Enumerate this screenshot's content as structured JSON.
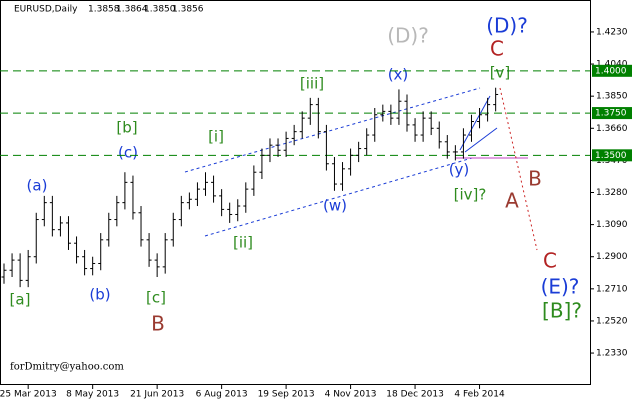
{
  "chart_data": {
    "type": "ohlc",
    "title": "EURUSD,Daily",
    "header_values": [
      1.3858,
      1.3864,
      1.385,
      1.3856
    ],
    "header_labels": [
      "1.3858",
      "1.3864",
      "1.3850",
      "1.3856"
    ],
    "color": "#000000",
    "categories": [
      null,
      null,
      null,
      "25 Mar 2013",
      null,
      null,
      null,
      null,
      null,
      null,
      null,
      "8 May 2013",
      null,
      null,
      null,
      null,
      null,
      null,
      null,
      "21 Jun 2013",
      null,
      null,
      null,
      null,
      null,
      null,
      null,
      "6 Aug 2013",
      null,
      null,
      null,
      null,
      null,
      null,
      null,
      "19 Sep 2013",
      null,
      null,
      null,
      null,
      null,
      null,
      null,
      "4 Nov 2013",
      null,
      null,
      null,
      null,
      null,
      null,
      null,
      "18 Dec 2013",
      null,
      null,
      null,
      null,
      null,
      null,
      null,
      "4 Feb 2014",
      null,
      null
    ],
    "open": [
      1.278,
      1.282,
      1.288,
      1.276,
      1.29,
      1.312,
      1.322,
      1.306,
      1.31,
      1.298,
      1.29,
      1.283,
      1.286,
      1.3,
      1.312,
      1.322,
      1.334,
      1.316,
      1.3,
      1.288,
      1.284,
      1.3,
      1.312,
      1.322,
      1.324,
      1.33,
      1.334,
      1.326,
      1.318,
      1.315,
      1.32,
      1.33,
      1.34,
      1.35,
      1.356,
      1.353,
      1.36,
      1.364,
      1.372,
      1.38,
      1.364,
      1.345,
      1.333,
      1.342,
      1.35,
      1.354,
      1.362,
      1.374,
      1.376,
      1.372,
      1.382,
      1.368,
      1.362,
      1.372,
      1.366,
      1.358,
      1.352,
      1.352,
      1.362,
      1.37,
      1.374,
      1.38
    ],
    "high": [
      1.286,
      1.292,
      1.292,
      1.294,
      1.316,
      1.326,
      1.326,
      1.314,
      1.314,
      1.302,
      1.294,
      1.29,
      1.304,
      1.316,
      1.326,
      1.34,
      1.338,
      1.32,
      1.304,
      1.292,
      1.304,
      1.316,
      1.326,
      1.328,
      1.334,
      1.34,
      1.338,
      1.33,
      1.322,
      1.324,
      1.334,
      1.344,
      1.354,
      1.36,
      1.36,
      1.364,
      1.368,
      1.376,
      1.384,
      1.384,
      1.368,
      1.349,
      1.346,
      1.354,
      1.358,
      1.366,
      1.378,
      1.38,
      1.38,
      1.389,
      1.386,
      1.372,
      1.376,
      1.376,
      1.37,
      1.362,
      1.356,
      1.366,
      1.374,
      1.378,
      1.384,
      1.39
    ],
    "low": [
      1.274,
      1.278,
      1.272,
      1.272,
      1.286,
      1.308,
      1.302,
      1.302,
      1.294,
      1.286,
      1.279,
      1.279,
      1.282,
      1.296,
      1.308,
      1.318,
      1.312,
      1.296,
      1.284,
      1.278,
      1.28,
      1.296,
      1.308,
      1.318,
      1.32,
      1.326,
      1.322,
      1.314,
      1.31,
      1.311,
      1.316,
      1.326,
      1.336,
      1.346,
      1.349,
      1.349,
      1.356,
      1.36,
      1.368,
      1.36,
      1.341,
      1.329,
      1.329,
      1.338,
      1.346,
      1.35,
      1.358,
      1.37,
      1.368,
      1.368,
      1.364,
      1.358,
      1.358,
      1.362,
      1.354,
      1.348,
      1.347,
      1.348,
      1.358,
      1.366,
      1.37,
      1.376
    ],
    "close": [
      1.282,
      1.288,
      1.276,
      1.29,
      1.312,
      1.322,
      1.306,
      1.31,
      1.298,
      1.29,
      1.283,
      1.286,
      1.3,
      1.312,
      1.322,
      1.334,
      1.316,
      1.3,
      1.288,
      1.284,
      1.3,
      1.312,
      1.322,
      1.324,
      1.33,
      1.334,
      1.326,
      1.318,
      1.315,
      1.32,
      1.33,
      1.34,
      1.35,
      1.356,
      1.353,
      1.36,
      1.364,
      1.372,
      1.38,
      1.364,
      1.345,
      1.333,
      1.342,
      1.35,
      1.354,
      1.362,
      1.374,
      1.376,
      1.372,
      1.382,
      1.368,
      1.362,
      1.372,
      1.366,
      1.358,
      1.352,
      1.352,
      1.362,
      1.37,
      1.374,
      1.38,
      1.386
    ],
    "ylim": [
      1.2141,
      1.4419
    ],
    "yticks": [
      {
        "value": 1.423,
        "label": "1.4230"
      },
      {
        "value": 1.404,
        "label": "1.4040"
      },
      {
        "value": 1.385,
        "label": "1.3850"
      },
      {
        "value": 1.366,
        "label": "1.3660"
      },
      {
        "value": 1.347,
        "label": "1.3470"
      },
      {
        "value": 1.328,
        "label": "1.3280"
      },
      {
        "value": 1.309,
        "label": "1.3090"
      },
      {
        "value": 1.29,
        "label": "1.2900"
      },
      {
        "value": 1.271,
        "label": "1.2710"
      },
      {
        "value": 1.252,
        "label": "1.2520"
      },
      {
        "value": 1.233,
        "label": "1.2330"
      }
    ],
    "levels": [
      {
        "value": 1.4,
        "label": "1.4000"
      },
      {
        "value": 1.375,
        "label": "1.3750"
      },
      {
        "value": 1.35,
        "label": "1.3500"
      }
    ],
    "level_color": "#008000",
    "annotations": [
      "[a]",
      "(a)",
      "(b)",
      "(c)",
      "[b]",
      "[c]",
      "B",
      "[i]",
      "[ii]",
      "[iii]",
      "(w)",
      "(x)",
      "(D)?",
      "(D)?",
      "C",
      "[v]",
      "(y)",
      "[iv]?",
      "B",
      "A",
      "C",
      "(E)?",
      "[B]?"
    ],
    "watermark": "forDmitry@yahoo.com"
  }
}
